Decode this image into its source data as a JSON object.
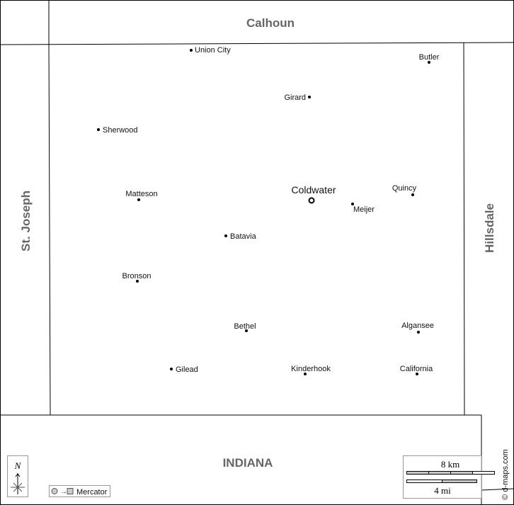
{
  "regions": {
    "north": "Calhoun",
    "west": "St. Joseph",
    "east": "Hillsdale",
    "south": "INDIANA"
  },
  "seat": {
    "name": "Coldwater"
  },
  "cities": [
    {
      "name": "Union City"
    },
    {
      "name": "Butler"
    },
    {
      "name": "Girard"
    },
    {
      "name": "Sherwood"
    },
    {
      "name": "Matteson"
    },
    {
      "name": "Quincy"
    },
    {
      "name": "Meijer"
    },
    {
      "name": "Batavia"
    },
    {
      "name": "Bronson"
    },
    {
      "name": "Bethel"
    },
    {
      "name": "Algansee"
    },
    {
      "name": "Gilead"
    },
    {
      "name": "Kinderhook"
    },
    {
      "name": "California"
    }
  ],
  "compass": {
    "label": "N"
  },
  "projection": {
    "label": "Mercator"
  },
  "scale": {
    "km_label": "8 km",
    "mi_label": "4 mi"
  },
  "credit": "© d-maps.com",
  "colors": {
    "border": "#000000",
    "region_label": "#666666",
    "scale_fill": "#c8c8c8"
  }
}
